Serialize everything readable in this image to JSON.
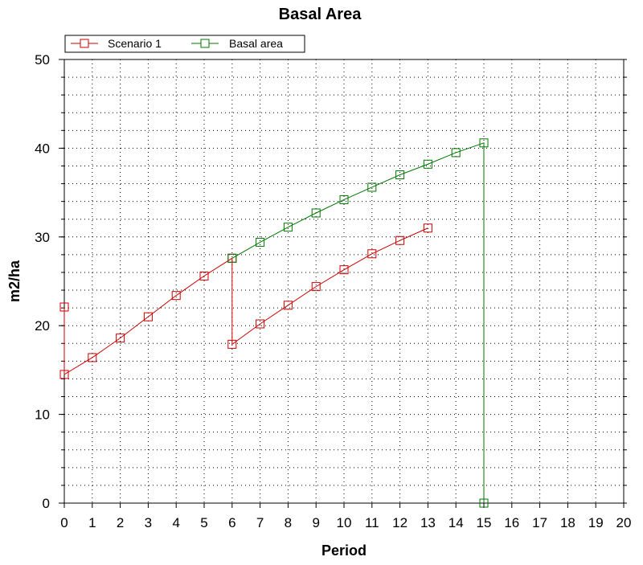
{
  "chart_data": {
    "type": "line",
    "title": "Basal Area",
    "xlabel": "Period",
    "ylabel": "m2/ha",
    "xlim": [
      0,
      20
    ],
    "ylim": [
      0,
      50
    ],
    "x_ticks": [
      "0",
      "1",
      "2",
      "3",
      "4",
      "5",
      "6",
      "7",
      "8",
      "9",
      "10",
      "11",
      "12",
      "13",
      "14",
      "15",
      "16",
      "17",
      "18",
      "19",
      "20"
    ],
    "y_ticks": [
      "0",
      "10",
      "20",
      "30",
      "40",
      "50"
    ],
    "grid": true,
    "legend_position": "top-left",
    "series": [
      {
        "name": "Scenario 1",
        "color": "#cc0000",
        "points": [
          [
            0,
            22.1
          ],
          [
            0,
            14.5
          ],
          [
            1,
            16.4
          ],
          [
            2,
            18.6
          ],
          [
            3,
            21.0
          ],
          [
            4,
            23.4
          ],
          [
            5,
            25.6
          ],
          [
            6,
            27.6
          ],
          [
            6,
            17.9
          ],
          [
            7,
            20.2
          ],
          [
            8,
            22.3
          ],
          [
            9,
            24.4
          ],
          [
            10,
            26.3
          ],
          [
            11,
            28.1
          ],
          [
            12,
            29.6
          ],
          [
            13,
            31.0
          ]
        ]
      },
      {
        "name": "Basal area",
        "color": "#007700",
        "points": [
          [
            6,
            27.6
          ],
          [
            7,
            29.4
          ],
          [
            8,
            31.1
          ],
          [
            9,
            32.7
          ],
          [
            10,
            34.2
          ],
          [
            11,
            35.6
          ],
          [
            12,
            37.0
          ],
          [
            13,
            38.2
          ],
          [
            14,
            39.5
          ],
          [
            15,
            40.6
          ],
          [
            15,
            0
          ]
        ]
      }
    ]
  }
}
